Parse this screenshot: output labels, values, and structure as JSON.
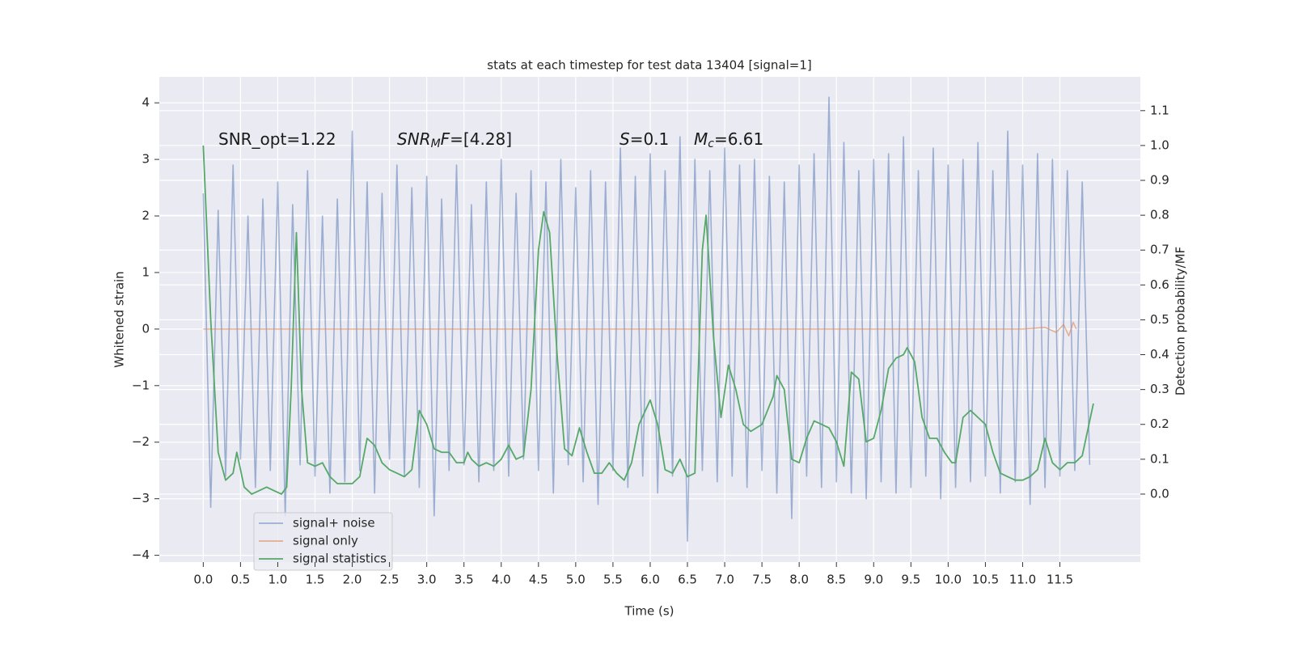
{
  "chart_data": {
    "type": "line",
    "title": "stats at each timestep for test data 13404 [signal=1]",
    "xlabel": "Time (s)",
    "ylabel": "Whitened strain",
    "y2label": "Detection probability/MF",
    "annotations": [
      [
        {
          "text": "SNR_opt=1.22"
        }
      ],
      [
        {
          "text": "SNR",
          "italic": true
        },
        {
          "text": "M",
          "italic": true,
          "sub": true
        },
        {
          "text": "F",
          "italic": true
        },
        {
          "text": "=[4.28]"
        }
      ],
      [
        {
          "text": "S",
          "italic": true
        },
        {
          "text": "=0.1"
        }
      ],
      [
        {
          "text": "M",
          "italic": true
        },
        {
          "text": "c",
          "italic": true,
          "sub": true
        },
        {
          "text": "=6.61"
        }
      ]
    ],
    "xlim": [
      -0.59,
      12.58
    ],
    "ylim": [
      -4.12,
      4.46
    ],
    "y2lim": [
      -0.195,
      1.197
    ],
    "xticks": [
      {
        "value": 0,
        "label": "0.0"
      },
      0.5,
      {
        "value": 1,
        "label": "1.0"
      },
      1.5,
      {
        "value": 2,
        "label": "2.0"
      },
      2.5,
      {
        "value": 3,
        "label": "3.0"
      },
      3.5,
      {
        "value": 4,
        "label": "4.0"
      },
      4.5,
      {
        "value": 5,
        "label": "5.0"
      },
      5.5,
      {
        "value": 6,
        "label": "6.0"
      },
      6.5,
      {
        "value": 7,
        "label": "7.0"
      },
      7.5,
      {
        "value": 8,
        "label": "8.0"
      },
      8.5,
      {
        "value": 9,
        "label": "9.0"
      },
      9.5,
      {
        "value": 10,
        "label": "10.0"
      },
      10.5,
      {
        "value": 11,
        "label": "11.0"
      },
      11.5
    ],
    "yticks": [
      {
        "value": -4,
        "label": "−4"
      },
      {
        "value": -3,
        "label": "−3"
      },
      {
        "value": -2,
        "label": "−2"
      },
      {
        "value": -1,
        "label": "−1"
      },
      0,
      1,
      2,
      3,
      4
    ],
    "y2ticks": [
      {
        "value": 0,
        "label": "0.0"
      },
      0.1,
      0.2,
      0.3,
      0.4,
      0.5,
      0.6,
      0.7,
      0.8,
      0.9,
      {
        "value": 1,
        "label": "1.0"
      },
      1.1
    ],
    "grid": true,
    "series": [
      {
        "name": "signal+ noise",
        "color": "#4c72b0",
        "x": [
          0,
          0.1,
          0.2,
          0.3,
          0.4,
          0.5,
          0.6,
          0.7,
          0.8,
          0.9,
          1,
          1.1,
          1.2,
          1.3,
          1.4,
          1.5,
          1.6,
          1.7,
          1.8,
          1.9,
          2,
          2.1,
          2.2,
          2.3,
          2.4,
          2.5,
          2.6,
          2.7,
          2.8,
          2.9,
          3,
          3.1,
          3.2,
          3.3,
          3.4,
          3.5,
          3.6,
          3.7,
          3.8,
          3.9,
          4,
          4.1,
          4.2,
          4.3,
          4.4,
          4.5,
          4.6,
          4.7,
          4.8,
          4.9,
          5,
          5.1,
          5.2,
          5.3,
          5.4,
          5.5,
          5.6,
          5.7,
          5.8,
          5.9,
          6,
          6.1,
          6.2,
          6.3,
          6.4,
          6.5,
          6.6,
          6.7,
          6.8,
          6.9,
          7,
          7.1,
          7.2,
          7.3,
          7.4,
          7.5,
          7.6,
          7.7,
          7.8,
          7.9,
          8,
          8.1,
          8.2,
          8.3,
          8.4,
          8.5,
          8.6,
          8.7,
          8.8,
          8.9,
          9,
          9.1,
          9.2,
          9.3,
          9.4,
          9.5,
          9.6,
          9.7,
          9.8,
          9.9,
          10,
          10.1,
          10.2,
          10.3,
          10.4,
          10.5,
          10.6,
          10.7,
          10.8,
          10.9,
          11,
          11.1,
          11.2,
          11.3,
          11.4,
          11.5,
          11.6,
          11.7,
          11.8,
          11.9
        ],
        "values": [
          2.4,
          -3.15,
          2.1,
          -2.6,
          2.9,
          -2.3,
          2.0,
          -2.8,
          2.3,
          -2.5,
          2.6,
          -3.3,
          2.2,
          -2.4,
          2.8,
          -2.6,
          2.0,
          -2.9,
          2.3,
          -2.7,
          3.5,
          -2.5,
          2.6,
          -2.9,
          2.4,
          -2.3,
          2.9,
          -2.6,
          2.5,
          -2.8,
          2.7,
          -3.3,
          2.3,
          -2.5,
          2.9,
          -2.4,
          2.2,
          -2.7,
          2.6,
          -2.5,
          3.0,
          -2.6,
          2.4,
          -2.3,
          2.8,
          -2.5,
          2.6,
          -2.9,
          3.0,
          -2.4,
          2.5,
          -2.7,
          2.8,
          -3.1,
          2.6,
          -2.5,
          3.2,
          -2.8,
          2.7,
          -2.6,
          3.1,
          -2.9,
          2.8,
          -2.6,
          3.4,
          -3.75,
          3.0,
          -2.5,
          2.8,
          -2.7,
          3.2,
          -2.6,
          2.9,
          -2.8,
          3.0,
          -2.5,
          2.7,
          -2.9,
          2.6,
          -3.35,
          2.9,
          -2.6,
          3.1,
          -2.8,
          4.1,
          -2.7,
          3.3,
          -2.9,
          2.8,
          -3.0,
          3.0,
          -2.7,
          3.1,
          -2.9,
          3.4,
          -2.8,
          2.8,
          -2.6,
          3.2,
          -3.0,
          2.9,
          -2.8,
          3.0,
          -2.7,
          3.3,
          -2.6,
          2.8,
          -2.9,
          3.5,
          -2.7,
          2.9,
          -3.1,
          3.1,
          -2.8,
          3.0,
          -2.6,
          2.8,
          -2.5,
          2.6,
          -2.4
        ]
      },
      {
        "name": "signal only",
        "color": "#dd8452",
        "x": [
          0,
          11.0,
          11.3,
          11.45,
          11.55,
          11.62,
          11.68,
          11.72
        ],
        "values": [
          0,
          0,
          0.03,
          -0.06,
          0.08,
          -0.12,
          0.12,
          0
        ]
      },
      {
        "name": "signal statistics",
        "color": "#55a868",
        "axis": "y2",
        "x": [
          0,
          0.1,
          0.2,
          0.3,
          0.4,
          0.45,
          0.55,
          0.65,
          0.75,
          0.85,
          0.95,
          1.05,
          1.12,
          1.18,
          1.25,
          1.32,
          1.4,
          1.5,
          1.6,
          1.7,
          1.8,
          1.9,
          2.0,
          2.1,
          2.2,
          2.3,
          2.4,
          2.5,
          2.6,
          2.7,
          2.8,
          2.9,
          3.0,
          3.1,
          3.2,
          3.3,
          3.4,
          3.5,
          3.55,
          3.6,
          3.7,
          3.8,
          3.9,
          4.0,
          4.1,
          4.2,
          4.3,
          4.4,
          4.5,
          4.57,
          4.65,
          4.75,
          4.85,
          4.95,
          5.05,
          5.15,
          5.25,
          5.35,
          5.45,
          5.55,
          5.65,
          5.75,
          5.85,
          6.0,
          6.1,
          6.2,
          6.3,
          6.4,
          6.5,
          6.6,
          6.7,
          6.75,
          6.85,
          6.95,
          7.05,
          7.15,
          7.25,
          7.35,
          7.5,
          7.65,
          7.7,
          7.8,
          7.9,
          8.0,
          8.1,
          8.2,
          8.3,
          8.4,
          8.5,
          8.6,
          8.7,
          8.8,
          8.9,
          9.0,
          9.1,
          9.2,
          9.3,
          9.4,
          9.45,
          9.55,
          9.65,
          9.75,
          9.85,
          9.95,
          10.05,
          10.1,
          10.2,
          10.3,
          10.4,
          10.5,
          10.6,
          10.7,
          10.8,
          10.9,
          11.0,
          11.1,
          11.2,
          11.3,
          11.4,
          11.5,
          11.6,
          11.7,
          11.8,
          11.95
        ],
        "values": [
          1.0,
          0.5,
          0.12,
          0.04,
          0.06,
          0.12,
          0.02,
          0.0,
          0.01,
          0.02,
          0.01,
          0.0,
          0.02,
          0.3,
          0.75,
          0.3,
          0.09,
          0.08,
          0.09,
          0.05,
          0.03,
          0.03,
          0.03,
          0.05,
          0.16,
          0.14,
          0.09,
          0.07,
          0.06,
          0.05,
          0.07,
          0.24,
          0.2,
          0.13,
          0.12,
          0.12,
          0.09,
          0.09,
          0.12,
          0.1,
          0.08,
          0.09,
          0.08,
          0.1,
          0.14,
          0.1,
          0.11,
          0.3,
          0.7,
          0.81,
          0.75,
          0.4,
          0.13,
          0.11,
          0.19,
          0.12,
          0.06,
          0.06,
          0.09,
          0.06,
          0.04,
          0.09,
          0.2,
          0.27,
          0.2,
          0.07,
          0.06,
          0.1,
          0.05,
          0.06,
          0.7,
          0.8,
          0.45,
          0.22,
          0.37,
          0.3,
          0.2,
          0.18,
          0.2,
          0.28,
          0.34,
          0.3,
          0.1,
          0.09,
          0.16,
          0.21,
          0.2,
          0.19,
          0.15,
          0.08,
          0.35,
          0.33,
          0.15,
          0.16,
          0.24,
          0.36,
          0.39,
          0.4,
          0.42,
          0.38,
          0.22,
          0.16,
          0.16,
          0.12,
          0.09,
          0.09,
          0.22,
          0.24,
          0.22,
          0.2,
          0.12,
          0.06,
          0.05,
          0.04,
          0.04,
          0.05,
          0.07,
          0.16,
          0.09,
          0.07,
          0.09,
          0.09,
          0.11,
          0.26
        ]
      }
    ]
  }
}
